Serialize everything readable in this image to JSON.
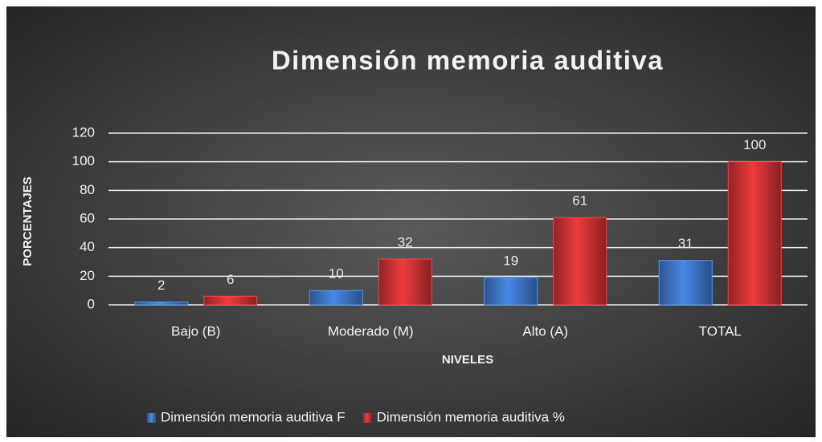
{
  "chart_data": {
    "type": "bar",
    "title": "Dimensión memoria auditiva",
    "x_label": "NIVELES",
    "y_label": "PORCENTAJES",
    "categories": [
      "Bajo (B)",
      "Moderado (M)",
      "Alto (A)",
      "TOTAL"
    ],
    "series": [
      {
        "name": "Dimensión memoria auditiva F",
        "color": "#3f78c9",
        "values": [
          2,
          10,
          19,
          31
        ]
      },
      {
        "name": "Dimensión memoria auditiva %",
        "color": "#cf3434",
        "values": [
          6,
          32,
          61,
          100
        ]
      }
    ],
    "ylim": [
      0,
      120
    ],
    "yticks": [
      0,
      20,
      40,
      60,
      80,
      100,
      120
    ],
    "grid": true,
    "legend": "bottom"
  }
}
